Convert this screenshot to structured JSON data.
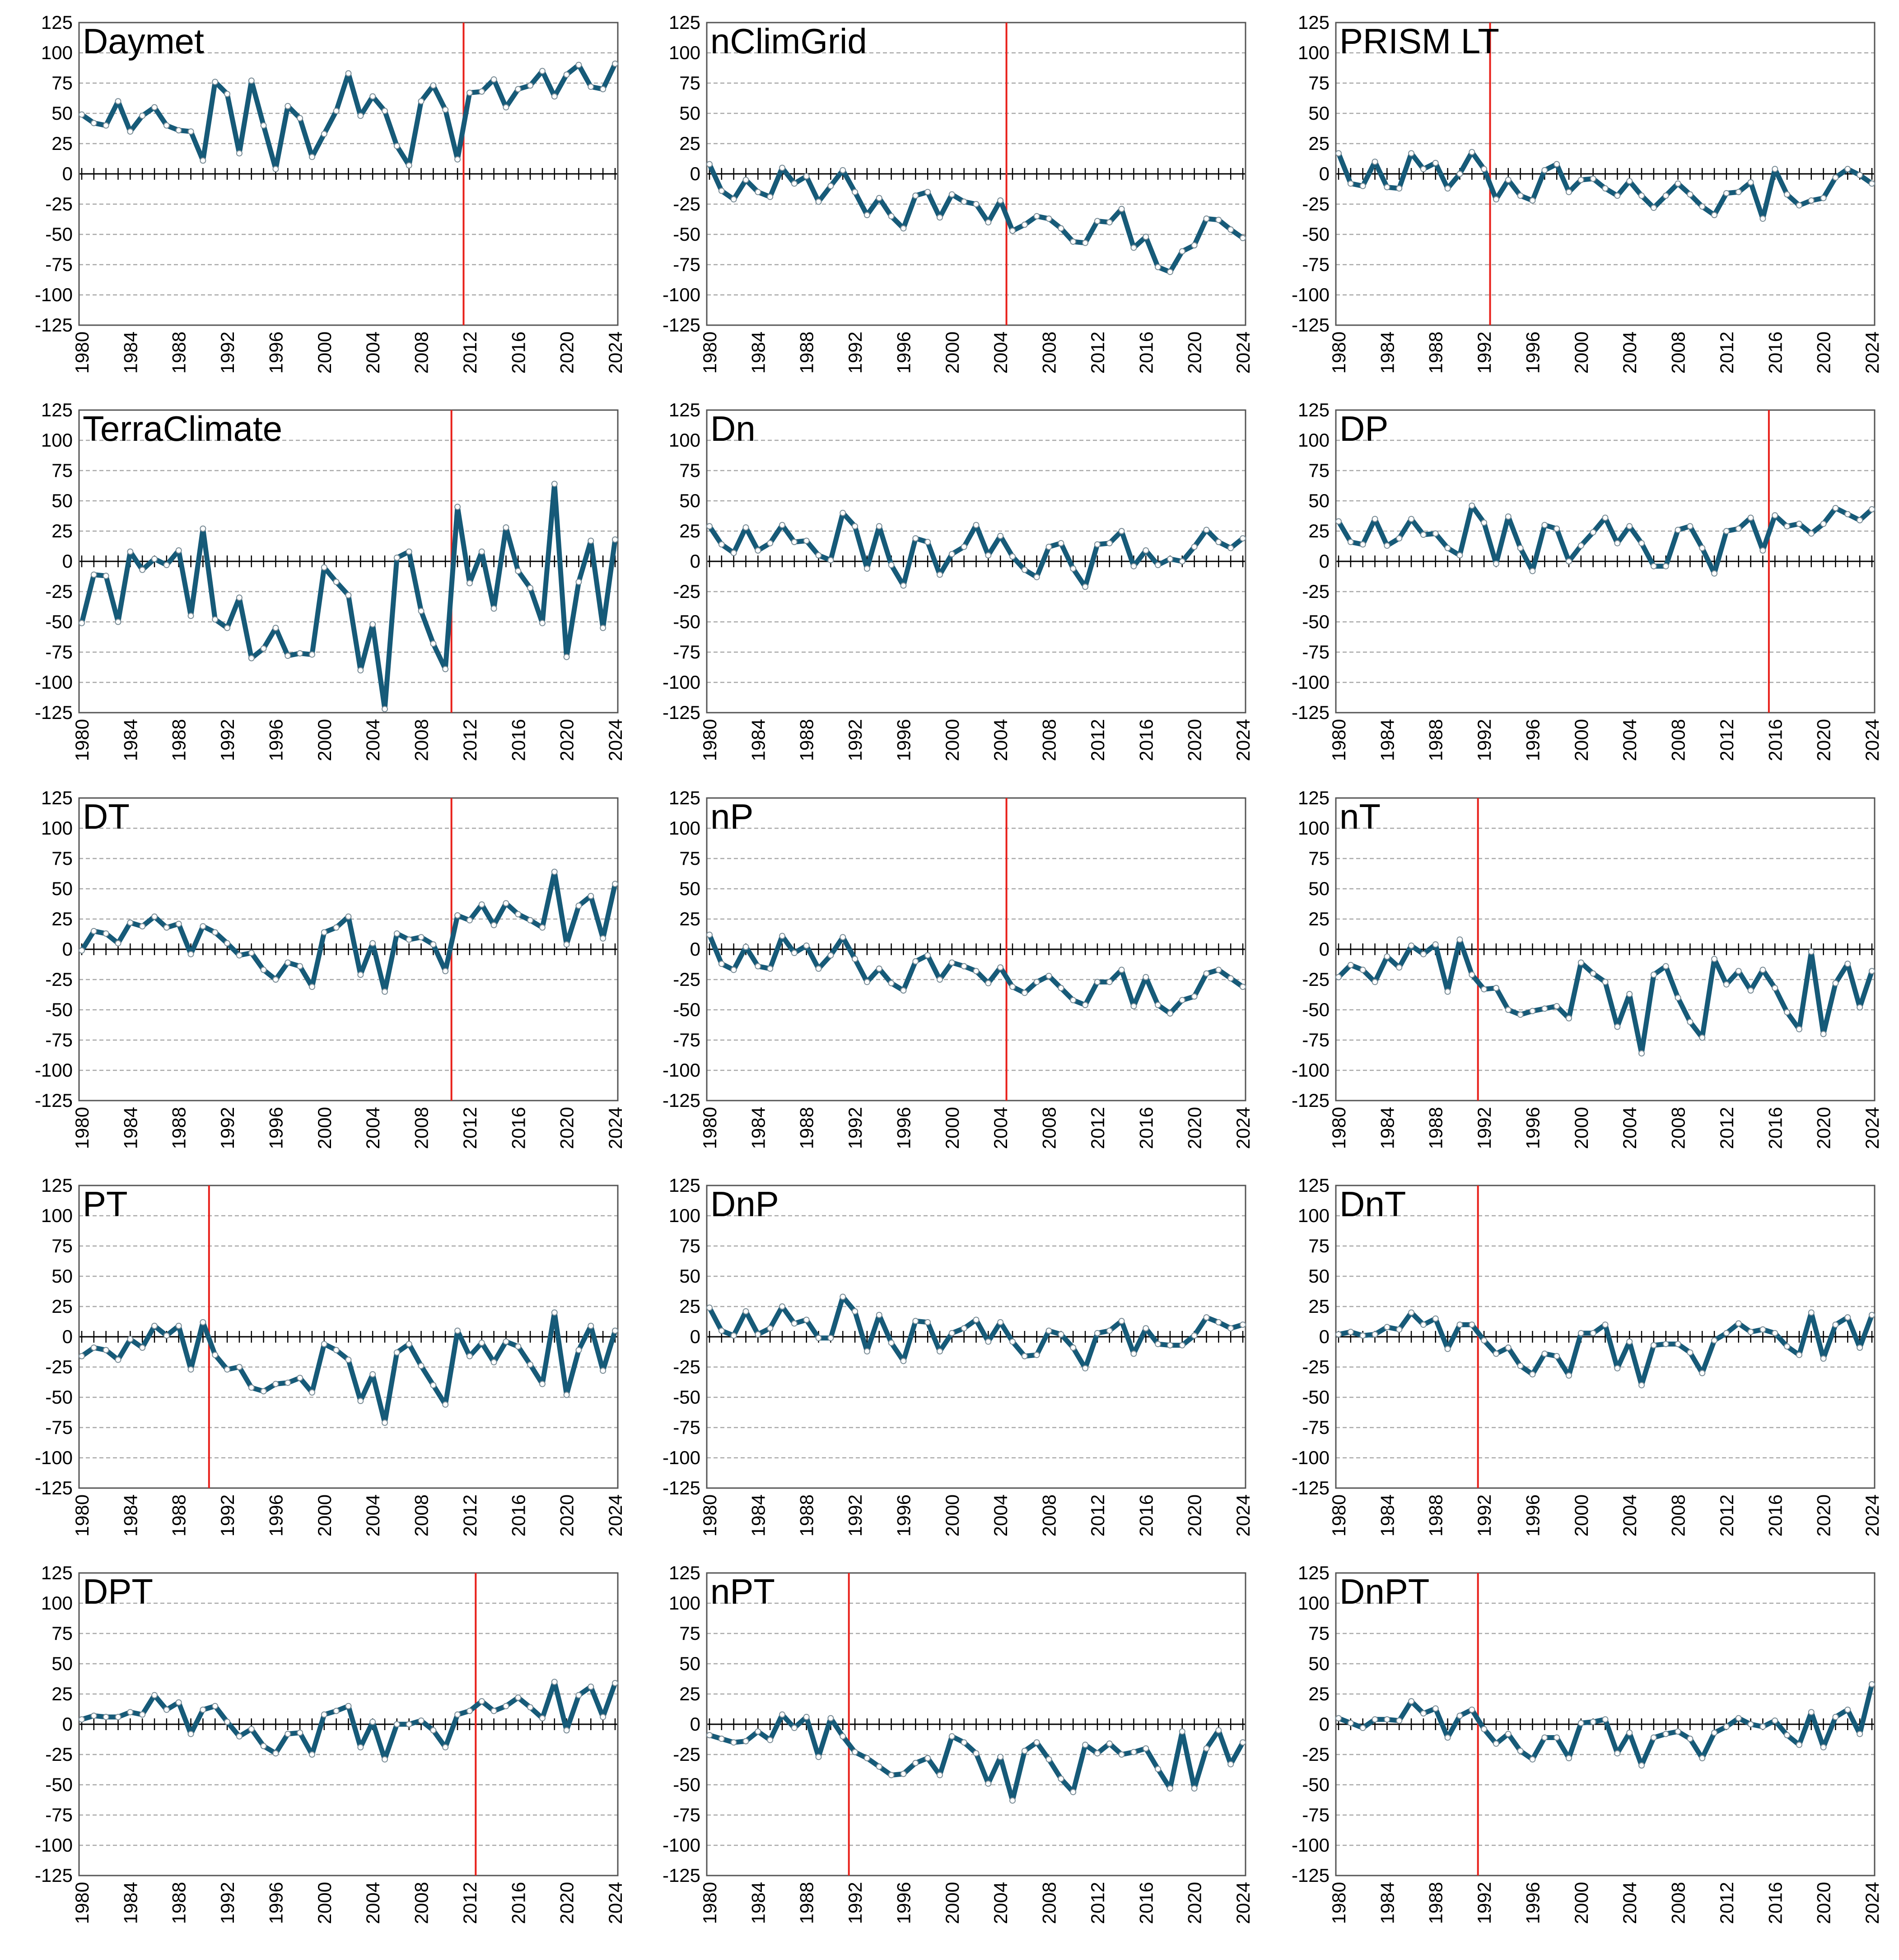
{
  "chart_data": [
    {
      "type": "line",
      "title": "Daymet",
      "xlabel": "",
      "ylabel": "",
      "x_start": 1980,
      "x_end": 2024,
      "ylim": [
        -125,
        125
      ],
      "y_ticks": [
        125,
        100,
        75,
        50,
        25,
        0,
        -25,
        -50,
        -75,
        -100,
        -125
      ],
      "x_ticks": [
        1980,
        1984,
        1988,
        1992,
        1996,
        2000,
        2004,
        2008,
        2012,
        2016,
        2020,
        2024
      ],
      "grid": "horizontal dashed",
      "changepoint": 2011.5,
      "values": [
        49,
        42,
        40,
        60,
        35,
        48,
        55,
        40,
        36,
        35,
        11,
        76,
        66,
        17,
        77,
        40,
        4,
        56,
        46,
        14,
        33,
        52,
        83,
        48,
        64,
        52,
        23,
        7,
        60,
        73,
        53,
        12,
        67,
        68,
        78,
        55,
        70,
        73,
        85,
        64,
        82,
        90,
        72,
        70,
        91
      ]
    },
    {
      "type": "line",
      "title": "nClimGrid",
      "xlabel": "",
      "ylabel": "",
      "x_start": 1980,
      "x_end": 2024,
      "ylim": [
        -125,
        125
      ],
      "y_ticks": [
        125,
        100,
        75,
        50,
        25,
        0,
        -25,
        -50,
        -75,
        -100,
        -125
      ],
      "x_ticks": [
        1980,
        1984,
        1988,
        1992,
        1996,
        2000,
        2004,
        2008,
        2012,
        2016,
        2020,
        2024
      ],
      "grid": "horizontal dashed",
      "changepoint": 2004.5,
      "values": [
        8,
        -14,
        -21,
        -5,
        -15,
        -19,
        5,
        -8,
        -2,
        -23,
        -10,
        3,
        -15,
        -34,
        -20,
        -35,
        -45,
        -18,
        -15,
        -36,
        -17,
        -23,
        -25,
        -40,
        -22,
        -47,
        -42,
        -35,
        -37,
        -45,
        -56,
        -57,
        -39,
        -40,
        -29,
        -61,
        -52,
        -77,
        -81,
        -64,
        -59,
        -37,
        -38,
        -46,
        -53
      ]
    },
    {
      "type": "line",
      "title": "PRISM LT",
      "xlabel": "",
      "ylabel": "",
      "x_start": 1980,
      "x_end": 2024,
      "ylim": [
        -125,
        125
      ],
      "y_ticks": [
        125,
        100,
        75,
        50,
        25,
        0,
        -25,
        -50,
        -75,
        -100,
        -125
      ],
      "x_ticks": [
        1980,
        1984,
        1988,
        1992,
        1996,
        2000,
        2004,
        2008,
        2012,
        2016,
        2020,
        2024
      ],
      "grid": "horizontal dashed",
      "changepoint": 1992.5,
      "values": [
        17,
        -8,
        -10,
        10,
        -11,
        -12,
        17,
        4,
        9,
        -12,
        0,
        18,
        4,
        -21,
        -5,
        -18,
        -22,
        3,
        8,
        -15,
        -5,
        -4,
        -12,
        -18,
        -6,
        -18,
        -28,
        -18,
        -8,
        -17,
        -27,
        -34,
        -16,
        -15,
        -7,
        -37,
        4,
        -17,
        -26,
        -22,
        -20,
        -3,
        4,
        -1,
        -8
      ]
    },
    {
      "type": "line",
      "title": "TerraClimate",
      "xlabel": "",
      "ylabel": "",
      "x_start": 1980,
      "x_end": 2024,
      "ylim": [
        -125,
        125
      ],
      "y_ticks": [
        125,
        100,
        75,
        50,
        25,
        0,
        -25,
        -50,
        -75,
        -100,
        -125
      ],
      "x_ticks": [
        1980,
        1984,
        1988,
        1992,
        1996,
        2000,
        2004,
        2008,
        2012,
        2016,
        2020,
        2024
      ],
      "grid": "horizontal dashed",
      "changepoint": 2010.5,
      "values": [
        -51,
        -11,
        -12,
        -50,
        8,
        -7,
        2,
        -3,
        9,
        -45,
        27,
        -48,
        -55,
        -30,
        -80,
        -72,
        -55,
        -78,
        -76,
        -77,
        -5,
        -17,
        -28,
        -90,
        -52,
        -122,
        3,
        8,
        -41,
        -68,
        -89,
        45,
        -18,
        8,
        -39,
        28,
        -8,
        -22,
        -51,
        64,
        -79,
        -17,
        17,
        -55,
        18
      ]
    },
    {
      "type": "line",
      "title": "Dn",
      "xlabel": "",
      "ylabel": "",
      "x_start": 1980,
      "x_end": 2024,
      "ylim": [
        -125,
        125
      ],
      "y_ticks": [
        125,
        100,
        75,
        50,
        25,
        0,
        -25,
        -50,
        -75,
        -100,
        -125
      ],
      "x_ticks": [
        1980,
        1984,
        1988,
        1992,
        1996,
        2000,
        2004,
        2008,
        2012,
        2016,
        2020,
        2024
      ],
      "grid": "horizontal dashed",
      "changepoint": null,
      "values": [
        29,
        14,
        7,
        28,
        9,
        15,
        30,
        16,
        17,
        5,
        1,
        40,
        29,
        -6,
        29,
        -3,
        -20,
        19,
        16,
        -11,
        6,
        12,
        30,
        5,
        21,
        4,
        -7,
        -13,
        12,
        15,
        -6,
        -21,
        14,
        15,
        25,
        -4,
        9,
        -3,
        2,
        0,
        12,
        26,
        16,
        11,
        19
      ]
    },
    {
      "type": "line",
      "title": "DP",
      "xlabel": "",
      "ylabel": "",
      "x_start": 1980,
      "x_end": 2024,
      "ylim": [
        -125,
        125
      ],
      "y_ticks": [
        125,
        100,
        75,
        50,
        25,
        0,
        -25,
        -50,
        -75,
        -100,
        -125
      ],
      "x_ticks": [
        1980,
        1984,
        1988,
        1992,
        1996,
        2000,
        2004,
        2008,
        2012,
        2016,
        2020,
        2024
      ],
      "grid": "horizontal dashed",
      "changepoint": 2015.5,
      "values": [
        33,
        16,
        14,
        35,
        13,
        19,
        35,
        22,
        23,
        11,
        5,
        46,
        32,
        -2,
        37,
        11,
        -8,
        30,
        27,
        0,
        13,
        24,
        36,
        15,
        29,
        15,
        -4,
        -4,
        26,
        29,
        11,
        -10,
        25,
        27,
        36,
        9,
        38,
        29,
        31,
        23,
        31,
        44,
        39,
        34,
        43
      ]
    },
    {
      "type": "line",
      "title": "DT",
      "xlabel": "",
      "ylabel": "",
      "x_start": 1980,
      "x_end": 2024,
      "ylim": [
        -125,
        125
      ],
      "y_ticks": [
        125,
        100,
        75,
        50,
        25,
        0,
        -25,
        -50,
        -75,
        -100,
        -125
      ],
      "x_ticks": [
        1980,
        1984,
        1988,
        1992,
        1996,
        2000,
        2004,
        2008,
        2012,
        2016,
        2020,
        2024
      ],
      "grid": "horizontal dashed",
      "changepoint": 2010.5,
      "values": [
        -1,
        15,
        13,
        5,
        22,
        19,
        27,
        18,
        21,
        -4,
        19,
        14,
        5,
        -5,
        -3,
        -17,
        -25,
        -11,
        -14,
        -31,
        14,
        18,
        27,
        -21,
        5,
        -35,
        13,
        8,
        10,
        4,
        -18,
        28,
        24,
        37,
        20,
        38,
        29,
        24,
        18,
        64,
        4,
        36,
        44,
        9,
        54
      ]
    },
    {
      "type": "line",
      "title": "nP",
      "xlabel": "",
      "ylabel": "",
      "x_start": 1980,
      "x_end": 2024,
      "ylim": [
        -125,
        125
      ],
      "y_ticks": [
        125,
        100,
        75,
        50,
        25,
        0,
        -25,
        -50,
        -75,
        -100,
        -125
      ],
      "x_ticks": [
        1980,
        1984,
        1988,
        1992,
        1996,
        2000,
        2004,
        2008,
        2012,
        2016,
        2020,
        2024
      ],
      "grid": "horizontal dashed",
      "changepoint": 2004.5,
      "values": [
        12,
        -12,
        -17,
        2,
        -14,
        -16,
        11,
        -3,
        3,
        -16,
        -5,
        10,
        -8,
        -27,
        -16,
        -28,
        -34,
        -10,
        -5,
        -25,
        -11,
        -14,
        -18,
        -28,
        -15,
        -31,
        -36,
        -27,
        -22,
        -32,
        -42,
        -46,
        -27,
        -27,
        -17,
        -47,
        -23,
        -46,
        -53,
        -42,
        -39,
        -20,
        -17,
        -24,
        -31
      ]
    },
    {
      "type": "line",
      "title": "nT",
      "xlabel": "",
      "ylabel": "",
      "x_start": 1980,
      "x_end": 2024,
      "ylim": [
        -125,
        125
      ],
      "y_ticks": [
        125,
        100,
        75,
        50,
        25,
        0,
        -25,
        -50,
        -75,
        -100,
        -125
      ],
      "x_ticks": [
        1980,
        1984,
        1988,
        1992,
        1996,
        2000,
        2004,
        2008,
        2012,
        2016,
        2020,
        2024
      ],
      "grid": "horizontal dashed",
      "changepoint": 1991.5,
      "values": [
        -23,
        -13,
        -17,
        -27,
        -6,
        -15,
        3,
        -4,
        4,
        -35,
        8,
        -21,
        -33,
        -32,
        -50,
        -54,
        -51,
        -49,
        -47,
        -57,
        -11,
        -20,
        -27,
        -64,
        -37,
        -86,
        -21,
        -14,
        -40,
        -60,
        -73,
        -8,
        -29,
        -18,
        -34,
        -17,
        -32,
        -52,
        -66,
        -2,
        -70,
        -28,
        -12,
        -48,
        -18
      ]
    },
    {
      "type": "line",
      "title": "PT",
      "xlabel": "",
      "ylabel": "",
      "x_start": 1980,
      "x_end": 2024,
      "ylim": [
        -125,
        125
      ],
      "y_ticks": [
        125,
        100,
        75,
        50,
        25,
        0,
        -25,
        -50,
        -75,
        -100,
        -125
      ],
      "x_ticks": [
        1980,
        1984,
        1988,
        1992,
        1996,
        2000,
        2004,
        2008,
        2012,
        2016,
        2020,
        2024
      ],
      "grid": "horizontal dashed",
      "changepoint": 1990.5,
      "values": [
        -16,
        -9,
        -11,
        -19,
        -2,
        -9,
        9,
        1,
        9,
        -27,
        12,
        -15,
        -27,
        -25,
        -42,
        -45,
        -39,
        -38,
        -34,
        -46,
        -6,
        -11,
        -19,
        -53,
        -31,
        -71,
        -13,
        -6,
        -24,
        -40,
        -56,
        5,
        -16,
        -5,
        -21,
        -4,
        -8,
        -23,
        -39,
        20,
        -48,
        -11,
        9,
        -28,
        5
      ]
    },
    {
      "type": "line",
      "title": "DnP",
      "xlabel": "",
      "ylabel": "",
      "x_start": 1980,
      "x_end": 2024,
      "ylim": [
        -125,
        125
      ],
      "y_ticks": [
        125,
        100,
        75,
        50,
        25,
        0,
        -25,
        -50,
        -75,
        -100,
        -125
      ],
      "x_ticks": [
        1980,
        1984,
        1988,
        1992,
        1996,
        2000,
        2004,
        2008,
        2012,
        2016,
        2020,
        2024
      ],
      "grid": "horizontal dashed",
      "changepoint": null,
      "values": [
        24,
        5,
        1,
        21,
        2,
        7,
        25,
        11,
        14,
        -1,
        -1,
        33,
        21,
        -12,
        18,
        -5,
        -20,
        13,
        12,
        -12,
        3,
        7,
        14,
        -4,
        12,
        -4,
        -16,
        -15,
        5,
        2,
        -9,
        -26,
        3,
        5,
        13,
        -14,
        7,
        -6,
        -7,
        -7,
        1,
        16,
        12,
        7,
        10
      ]
    },
    {
      "type": "line",
      "title": "DnT",
      "xlabel": "",
      "ylabel": "",
      "x_start": 1980,
      "x_end": 2024,
      "ylim": [
        -125,
        125
      ],
      "y_ticks": [
        125,
        100,
        75,
        50,
        25,
        0,
        -25,
        -50,
        -75,
        -100,
        -125
      ],
      "x_ticks": [
        1980,
        1984,
        1988,
        1992,
        1996,
        2000,
        2004,
        2008,
        2012,
        2016,
        2020,
        2024
      ],
      "grid": "horizontal dashed",
      "changepoint": 1991.5,
      "values": [
        2,
        4,
        1,
        2,
        8,
        6,
        20,
        10,
        15,
        -10,
        10,
        10,
        -3,
        -14,
        -9,
        -24,
        -31,
        -14,
        -16,
        -32,
        3,
        3,
        10,
        -26,
        -4,
        -40,
        -7,
        -6,
        -6,
        -13,
        -30,
        -3,
        3,
        11,
        4,
        6,
        3,
        -8,
        -15,
        20,
        -18,
        10,
        16,
        -9,
        18
      ]
    },
    {
      "type": "line",
      "title": "DPT",
      "xlabel": "",
      "ylabel": "",
      "x_start": 1980,
      "x_end": 2024,
      "ylim": [
        -125,
        125
      ],
      "y_ticks": [
        125,
        100,
        75,
        50,
        25,
        0,
        -25,
        -50,
        -75,
        -100,
        -125
      ],
      "x_ticks": [
        1980,
        1984,
        1988,
        1992,
        1996,
        2000,
        2004,
        2008,
        2012,
        2016,
        2020,
        2024
      ],
      "grid": "horizontal dashed",
      "changepoint": 2012.5,
      "values": [
        4,
        7,
        6,
        6,
        10,
        8,
        24,
        12,
        18,
        -8,
        12,
        15,
        2,
        -10,
        -4,
        -18,
        -24,
        -8,
        -7,
        -25,
        8,
        11,
        15,
        -19,
        2,
        -29,
        0,
        0,
        3,
        -5,
        -19,
        8,
        11,
        19,
        11,
        15,
        22,
        14,
        5,
        35,
        -5,
        24,
        31,
        6,
        34
      ]
    },
    {
      "type": "line",
      "title": "nPT",
      "xlabel": "",
      "ylabel": "",
      "x_start": 1980,
      "x_end": 2024,
      "ylim": [
        -125,
        125
      ],
      "y_ticks": [
        125,
        100,
        75,
        50,
        25,
        0,
        -25,
        -50,
        -75,
        -100,
        -125
      ],
      "x_ticks": [
        1980,
        1984,
        1988,
        1992,
        1996,
        2000,
        2004,
        2008,
        2012,
        2016,
        2020,
        2024
      ],
      "grid": "horizontal dashed",
      "changepoint": 1991.5,
      "values": [
        -9,
        -12,
        -15,
        -14,
        -6,
        -13,
        8,
        -3,
        6,
        -27,
        5,
        -10,
        -23,
        -28,
        -35,
        -42,
        -41,
        -32,
        -28,
        -42,
        -10,
        -15,
        -24,
        -49,
        -27,
        -63,
        -22,
        -15,
        -29,
        -45,
        -56,
        -17,
        -24,
        -16,
        -25,
        -23,
        -20,
        -37,
        -53,
        -6,
        -53,
        -20,
        -5,
        -33,
        -15
      ]
    },
    {
      "type": "line",
      "title": "DnPT",
      "xlabel": "",
      "ylabel": "",
      "x_start": 1980,
      "x_end": 2024,
      "ylim": [
        -125,
        125
      ],
      "y_ticks": [
        125,
        100,
        75,
        50,
        25,
        0,
        -25,
        -50,
        -75,
        -100,
        -125
      ],
      "x_ticks": [
        1980,
        1984,
        1988,
        1992,
        1996,
        2000,
        2004,
        2008,
        2012,
        2016,
        2020,
        2024
      ],
      "grid": "horizontal dashed",
      "changepoint": 1991.5,
      "values": [
        5,
        1,
        -3,
        4,
        4,
        3,
        19,
        9,
        13,
        -11,
        7,
        12,
        -4,
        -16,
        -8,
        -22,
        -29,
        -11,
        -11,
        -28,
        1,
        2,
        4,
        -24,
        -7,
        -34,
        -11,
        -8,
        -6,
        -12,
        -28,
        -7,
        -2,
        5,
        0,
        -2,
        3,
        -9,
        -17,
        10,
        -19,
        6,
        12,
        -8,
        33
      ]
    }
  ],
  "colors": {
    "line": "#165a78",
    "marker_fill": "#ffffff",
    "changepoint": "#e8201a",
    "grid": "#a8a8a8",
    "axis": "#000000"
  }
}
